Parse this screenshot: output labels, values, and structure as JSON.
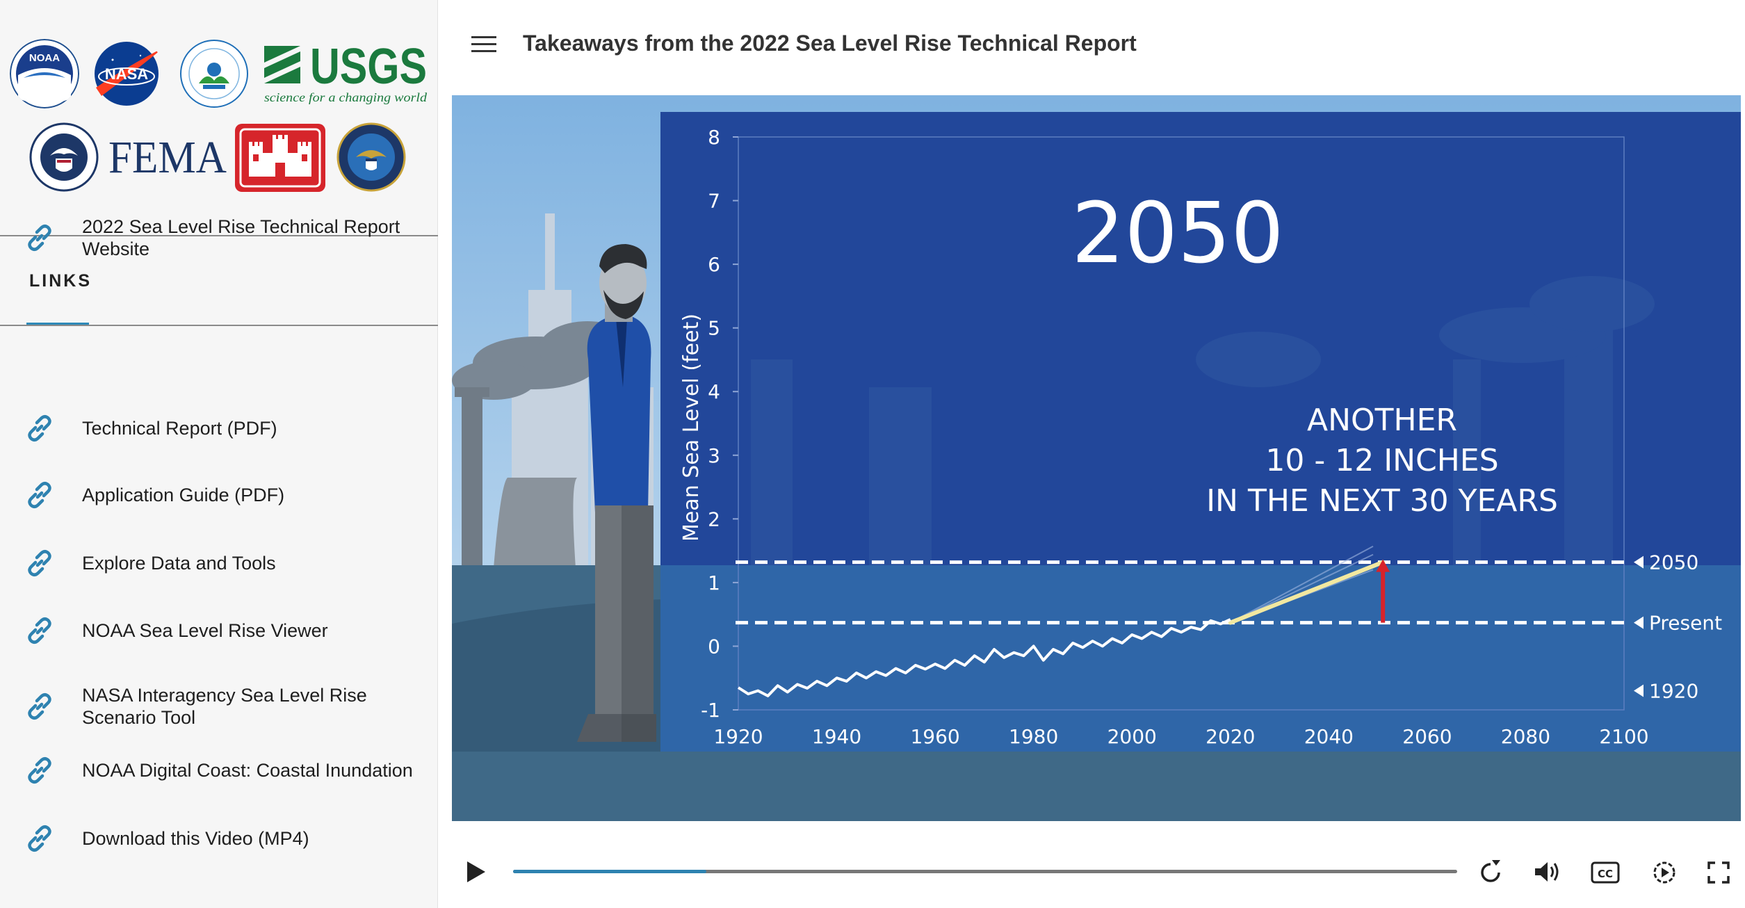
{
  "logos": {
    "noaa": "NOAA",
    "nasa": "NASA",
    "usgs_name": "USGS",
    "usgs_tagline": "science for a changing world",
    "fema": "FEMA"
  },
  "sidebar": {
    "heading": "LINKS",
    "links": [
      {
        "label_lines": [
          "2022 Sea Level Rise Technical Report",
          "Website"
        ],
        "icon": "link-icon"
      },
      {
        "label_lines": [
          "Technical Report (PDF)"
        ],
        "icon": "link-icon"
      },
      {
        "label_lines": [
          "Application Guide (PDF)"
        ],
        "icon": "link-icon"
      },
      {
        "label_lines": [
          "Explore Data and Tools"
        ],
        "icon": "link-icon"
      },
      {
        "label_lines": [
          "NOAA Sea Level Rise Viewer"
        ],
        "icon": "link-icon"
      },
      {
        "label_lines": [
          "NASA Interagency Sea Level Rise",
          "Scenario Tool"
        ],
        "icon": "link-icon"
      },
      {
        "label_lines": [
          "NOAA Digital Coast: Coastal Inundation"
        ],
        "icon": "link-icon"
      },
      {
        "label_lines": [
          "Download this Video (MP4)"
        ],
        "icon": "link-icon"
      }
    ]
  },
  "header": {
    "menu_icon": "hamburger-icon",
    "title": "Takeaways from the 2022 Sea Level Rise Technical Report"
  },
  "video": {
    "big_year": "2050",
    "caption_lines": [
      "ANOTHER",
      "10 - 12 INCHES",
      "IN THE NEXT 30 YEARS"
    ],
    "progress": 0.205,
    "chart_data": {
      "type": "line",
      "ylabel": "Mean Sea Level (feet)",
      "xlabel": "",
      "xlim": [
        1920,
        2100
      ],
      "ylim": [
        -1,
        8
      ],
      "x_ticks": [
        "1920",
        "1940",
        "1960",
        "1980",
        "2000",
        "2020",
        "2040",
        "2060",
        "2080",
        "2100"
      ],
      "y_ticks": [
        "8",
        "7",
        "6",
        "5",
        "4",
        "3",
        "2",
        "1",
        "0",
        "-1"
      ],
      "observed": {
        "x": [
          1920,
          1922,
          1924,
          1926,
          1928,
          1930,
          1932,
          1934,
          1936,
          1938,
          1940,
          1942,
          1944,
          1946,
          1948,
          1950,
          1952,
          1954,
          1956,
          1958,
          1960,
          1962,
          1964,
          1966,
          1968,
          1970,
          1972,
          1974,
          1976,
          1978,
          1980,
          1982,
          1984,
          1986,
          1988,
          1990,
          1992,
          1994,
          1996,
          1998,
          2000,
          2002,
          2004,
          2006,
          2008,
          2010,
          2012,
          2014,
          2016,
          2018,
          2020
        ],
        "y": [
          -0.65,
          -0.75,
          -0.7,
          -0.78,
          -0.62,
          -0.72,
          -0.6,
          -0.66,
          -0.55,
          -0.62,
          -0.5,
          -0.55,
          -0.42,
          -0.5,
          -0.4,
          -0.46,
          -0.35,
          -0.42,
          -0.3,
          -0.36,
          -0.28,
          -0.35,
          -0.22,
          -0.3,
          -0.15,
          -0.25,
          -0.05,
          -0.18,
          -0.1,
          -0.15,
          0.0,
          -0.22,
          -0.05,
          -0.12,
          0.05,
          -0.02,
          0.08,
          0.0,
          0.12,
          0.05,
          0.18,
          0.12,
          0.22,
          0.15,
          0.28,
          0.22,
          0.3,
          0.26,
          0.4,
          0.35,
          0.42
        ]
      },
      "projection": {
        "x": [
          2020,
          2051
        ],
        "y": [
          0.37,
          1.32
        ]
      },
      "reference_lines": [
        {
          "label": "2050",
          "y": 1.32
        },
        {
          "label": "Present",
          "y": 0.37
        }
      ],
      "markers": [
        {
          "label": "1920",
          "y": -0.7
        }
      ],
      "rise_arrow": {
        "x": 2051,
        "from": 0.37,
        "to": 1.32
      }
    }
  },
  "controls": {
    "play_icon": "play-icon",
    "replay_icon": "replay-icon",
    "volume_icon": "volume-icon",
    "cc_label": "CC",
    "speed_icon": "playback-speed-icon",
    "fullscreen_icon": "fullscreen-icon"
  },
  "colors": {
    "accent": "#2e82b0",
    "chart_panel": "#22479a",
    "water": "#2f66a8",
    "sky": "#a8cdea",
    "projection": "#f2e8a0",
    "arrow": "#d8232a"
  }
}
